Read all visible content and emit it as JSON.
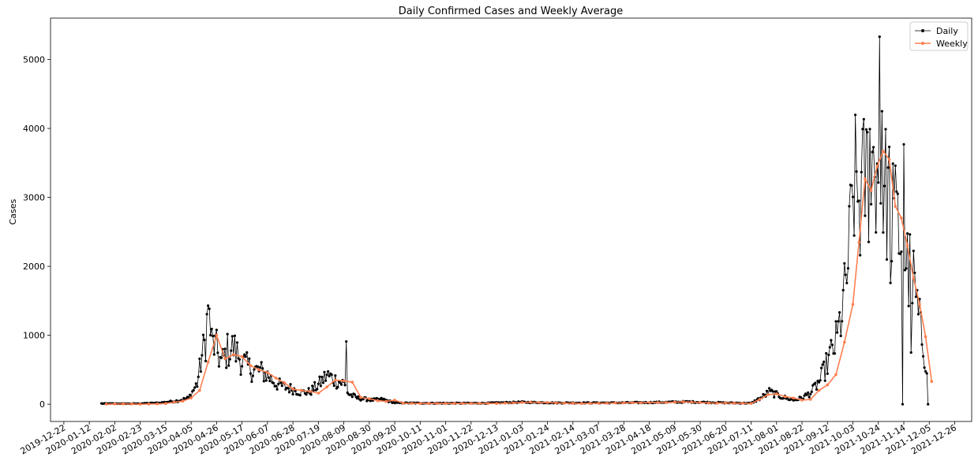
{
  "chart_data": {
    "type": "line",
    "title": "Daily Confirmed Cases and Weekly Average",
    "xlabel": "",
    "ylabel": "Cases",
    "xlim": [
      "2019-12-11",
      "2022-01-09"
    ],
    "ylim": [
      -250,
      5600
    ],
    "y_ticks": [
      0,
      1000,
      2000,
      3000,
      4000,
      5000
    ],
    "x_ticks": [
      "2019-12-22",
      "2020-01-12",
      "2020-02-02",
      "2020-02-23",
      "2020-03-15",
      "2020-04-05",
      "2020-04-26",
      "2020-05-17",
      "2020-06-07",
      "2020-06-28",
      "2020-07-19",
      "2020-08-09",
      "2020-08-30",
      "2020-09-20",
      "2020-10-11",
      "2020-11-01",
      "2020-11-22",
      "2020-12-13",
      "2021-01-03",
      "2021-01-24",
      "2021-02-14",
      "2021-03-07",
      "2021-03-28",
      "2021-04-18",
      "2021-05-09",
      "2021-05-30",
      "2021-06-20",
      "2021-07-11",
      "2021-08-01",
      "2021-08-22",
      "2021-09-12",
      "2021-10-03",
      "2021-10-24",
      "2021-11-14",
      "2021-12-05",
      "2021-12-26"
    ],
    "legend_position": "top-right",
    "grid": false,
    "daily_anchors": [
      [
        "2020-01-22",
        10
      ],
      [
        "2020-02-20",
        8
      ],
      [
        "2020-03-10",
        20
      ],
      [
        "2020-03-25",
        50
      ],
      [
        "2020-04-03",
        90
      ],
      [
        "2020-04-10",
        300
      ],
      [
        "2020-04-14",
        700
      ],
      [
        "2020-04-17",
        950
      ],
      [
        "2020-04-19",
        1430
      ],
      [
        "2020-04-22",
        900
      ],
      [
        "2020-04-26",
        800
      ],
      [
        "2020-04-30",
        600
      ],
      [
        "2020-05-05",
        780
      ],
      [
        "2020-05-10",
        820
      ],
      [
        "2020-05-18",
        600
      ],
      [
        "2020-05-25",
        500
      ],
      [
        "2020-06-01",
        480
      ],
      [
        "2020-06-07",
        420
      ],
      [
        "2020-06-14",
        300
      ],
      [
        "2020-06-21",
        250
      ],
      [
        "2020-06-28",
        220
      ],
      [
        "2020-07-05",
        170
      ],
      [
        "2020-07-12",
        180
      ],
      [
        "2020-07-19",
        280
      ],
      [
        "2020-07-26",
        420
      ],
      [
        "2020-08-02",
        350
      ],
      [
        "2020-08-09",
        300
      ],
      [
        "2020-08-13",
        150
      ],
      [
        "2020-08-20",
        90
      ],
      [
        "2020-09-01",
        60
      ],
      [
        "2020-09-10",
        70
      ],
      [
        "2020-09-20",
        20
      ],
      [
        "2020-10-15",
        15
      ],
      [
        "2020-12-01",
        15
      ],
      [
        "2021-01-03",
        30
      ],
      [
        "2021-02-01",
        20
      ],
      [
        "2021-03-15",
        20
      ],
      [
        "2021-04-18",
        25
      ],
      [
        "2021-05-20",
        35
      ],
      [
        "2021-06-20",
        20
      ],
      [
        "2021-07-11",
        15
      ],
      [
        "2021-07-20",
        100
      ],
      [
        "2021-07-26",
        180
      ],
      [
        "2021-08-05",
        110
      ],
      [
        "2021-08-15",
        60
      ],
      [
        "2021-08-22",
        90
      ],
      [
        "2021-08-30",
        180
      ],
      [
        "2021-09-06",
        350
      ],
      [
        "2021-09-12",
        600
      ],
      [
        "2021-09-20",
        950
      ],
      [
        "2021-09-26",
        1550
      ],
      [
        "2021-09-30",
        2250
      ],
      [
        "2021-10-04",
        3200
      ],
      [
        "2021-10-09",
        2900
      ],
      [
        "2021-10-13",
        3300
      ],
      [
        "2021-10-18",
        3450
      ],
      [
        "2021-10-22",
        3500
      ],
      [
        "2021-10-27",
        3150
      ],
      [
        "2021-11-02",
        3000
      ],
      [
        "2021-11-07",
        2650
      ],
      [
        "2021-11-12",
        2400
      ],
      [
        "2021-11-17",
        2000
      ],
      [
        "2021-11-22",
        1750
      ],
      [
        "2021-11-27",
        1150
      ],
      [
        "2021-12-01",
        750
      ],
      [
        "2021-12-03",
        600
      ]
    ],
    "daily_spikes": [
      [
        "2020-04-19",
        1430
      ],
      [
        "2020-08-11",
        910
      ],
      [
        "2021-10-17",
        3990
      ],
      [
        "2021-10-25",
        5330
      ],
      [
        "2021-10-27",
        4250
      ],
      [
        "2021-11-14",
        3770
      ],
      [
        "2021-11-05",
        3490
      ],
      [
        "2021-11-13",
        0
      ],
      [
        "2021-12-04",
        0
      ],
      [
        "2021-11-20",
        750
      ],
      [
        "2021-11-03",
        1760
      ]
    ],
    "series": [
      {
        "name": "Daily",
        "color": "#000000",
        "marker": "dot",
        "x_start": "2020-01-22",
        "x_end": "2021-12-04",
        "step": "1 day"
      },
      {
        "name": "Weekly",
        "color": "#ff7f50",
        "marker": "dot",
        "points": [
          [
            "2020-01-26",
            0
          ],
          [
            "2020-02-02",
            5
          ],
          [
            "2020-02-09",
            5
          ],
          [
            "2020-02-16",
            5
          ],
          [
            "2020-02-23",
            0
          ],
          [
            "2020-03-01",
            2
          ],
          [
            "2020-03-08",
            5
          ],
          [
            "2020-03-15",
            10
          ],
          [
            "2020-03-22",
            30
          ],
          [
            "2020-03-29",
            45
          ],
          [
            "2020-04-05",
            90
          ],
          [
            "2020-04-12",
            200
          ],
          [
            "2020-04-19",
            610
          ],
          [
            "2020-04-26",
            1000
          ],
          [
            "2020-05-03",
            660
          ],
          [
            "2020-05-10",
            720
          ],
          [
            "2020-05-17",
            690
          ],
          [
            "2020-05-24",
            560
          ],
          [
            "2020-05-31",
            500
          ],
          [
            "2020-06-07",
            460
          ],
          [
            "2020-06-14",
            380
          ],
          [
            "2020-06-21",
            310
          ],
          [
            "2020-06-28",
            220
          ],
          [
            "2020-07-05",
            200
          ],
          [
            "2020-07-12",
            185
          ],
          [
            "2020-07-19",
            160
          ],
          [
            "2020-07-26",
            250
          ],
          [
            "2020-08-02",
            350
          ],
          [
            "2020-08-09",
            340
          ],
          [
            "2020-08-16",
            320
          ],
          [
            "2020-08-23",
            100
          ],
          [
            "2020-08-30",
            80
          ],
          [
            "2020-09-06",
            50
          ],
          [
            "2020-09-13",
            40
          ],
          [
            "2020-09-20",
            60
          ],
          [
            "2020-09-27",
            15
          ],
          [
            "2020-10-04",
            12
          ],
          [
            "2020-10-11",
            10
          ],
          [
            "2020-10-18",
            10
          ],
          [
            "2020-10-25",
            10
          ],
          [
            "2020-11-01",
            10
          ],
          [
            "2020-11-08",
            10
          ],
          [
            "2020-11-15",
            10
          ],
          [
            "2020-11-22",
            12
          ],
          [
            "2020-11-29",
            12
          ],
          [
            "2020-12-06",
            12
          ],
          [
            "2020-12-13",
            10
          ],
          [
            "2020-12-20",
            15
          ],
          [
            "2020-12-27",
            20
          ],
          [
            "2021-01-03",
            25
          ],
          [
            "2021-01-10",
            30
          ],
          [
            "2021-01-17",
            25
          ],
          [
            "2021-01-24",
            25
          ],
          [
            "2021-01-31",
            20
          ],
          [
            "2021-02-07",
            15
          ],
          [
            "2021-02-14",
            15
          ],
          [
            "2021-02-21",
            10
          ],
          [
            "2021-02-28",
            12
          ],
          [
            "2021-03-07",
            15
          ],
          [
            "2021-03-14",
            15
          ],
          [
            "2021-03-21",
            18
          ],
          [
            "2021-03-28",
            20
          ],
          [
            "2021-04-04",
            22
          ],
          [
            "2021-04-11",
            20
          ],
          [
            "2021-04-18",
            25
          ],
          [
            "2021-04-25",
            25
          ],
          [
            "2021-05-02",
            25
          ],
          [
            "2021-05-09",
            30
          ],
          [
            "2021-05-16",
            35
          ],
          [
            "2021-05-23",
            30
          ],
          [
            "2021-05-30",
            25
          ],
          [
            "2021-06-06",
            20
          ],
          [
            "2021-06-13",
            15
          ],
          [
            "2021-06-20",
            20
          ],
          [
            "2021-06-27",
            15
          ],
          [
            "2021-07-04",
            15
          ],
          [
            "2021-07-11",
            10
          ],
          [
            "2021-07-18",
            70
          ],
          [
            "2021-07-25",
            140
          ],
          [
            "2021-08-01",
            150
          ],
          [
            "2021-08-08",
            110
          ],
          [
            "2021-08-15",
            90
          ],
          [
            "2021-08-22",
            60
          ],
          [
            "2021-08-29",
            70
          ],
          [
            "2021-09-05",
            200
          ],
          [
            "2021-09-12",
            280
          ],
          [
            "2021-09-19",
            430
          ],
          [
            "2021-09-26",
            900
          ],
          [
            "2021-10-03",
            1450
          ],
          [
            "2021-10-08",
            2350
          ],
          [
            "2021-10-13",
            3270
          ],
          [
            "2021-10-18",
            3100
          ],
          [
            "2021-10-23",
            3450
          ],
          [
            "2021-10-28",
            3670
          ],
          [
            "2021-11-02",
            3550
          ],
          [
            "2021-11-07",
            2870
          ],
          [
            "2021-11-12",
            2700
          ],
          [
            "2021-11-17",
            2300
          ],
          [
            "2021-11-22",
            1830
          ],
          [
            "2021-11-27",
            1450
          ],
          [
            "2021-12-02",
            980
          ],
          [
            "2021-12-07",
            330
          ]
        ]
      }
    ]
  }
}
